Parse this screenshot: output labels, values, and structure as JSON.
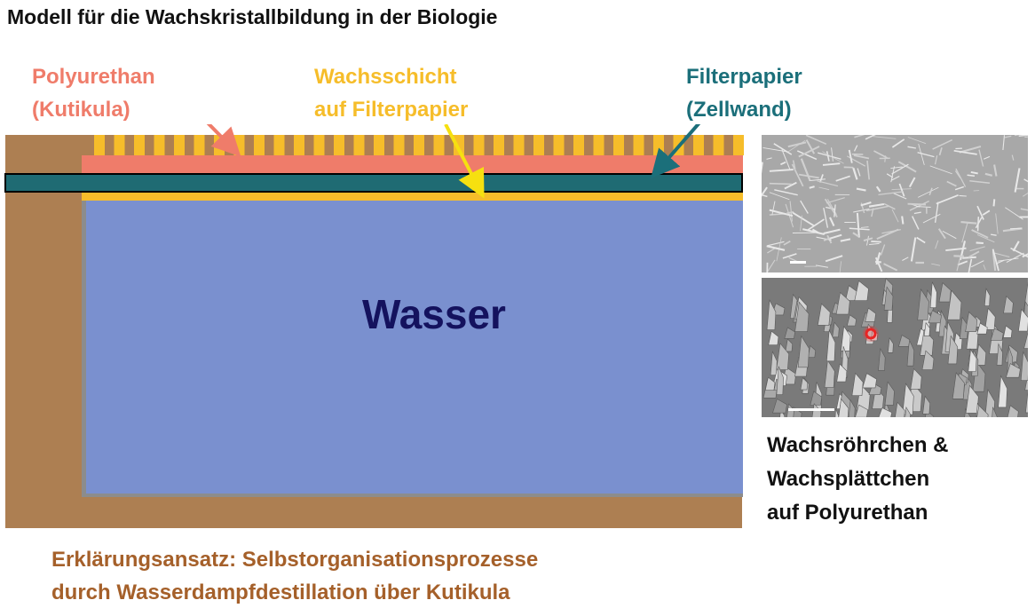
{
  "title": "Modell für die Wachskristallbildung in der Biologie",
  "labels": {
    "polyurethan_line1": "Polyurethan",
    "polyurethan_line2": "(Kutikula)",
    "wachsschicht_line1": "Wachsschicht",
    "wachsschicht_line2": "auf Filterpapier",
    "filterpapier_line1": "Filterpapier",
    "filterpapier_line2": "(Zellwand)"
  },
  "diagram": {
    "water_label": "Wasser"
  },
  "caption": {
    "line1": "Wachsröhrchen &",
    "line2": "Wachsplättchen",
    "line3": "auf Polyurethan"
  },
  "explanation": {
    "line1": "Erklärungsansatz: Selbstorganisationsprozesse",
    "line2": "durch Wasserdampfdestillation über Kutikula"
  },
  "colors": {
    "vessel": "#ad7f52",
    "water": "#7a90cf",
    "water_text": "#14125e",
    "polyurethan": "#ef7c6a",
    "wax": "#f6bd2a",
    "filterpaper": "#1f6b73"
  },
  "icons": [
    "polyurethan-arrow",
    "wachsschicht-arrow",
    "filterpapier-arrow",
    "microscope-photo-tubes",
    "microscope-photo-platelets",
    "red-pointer-icon"
  ]
}
